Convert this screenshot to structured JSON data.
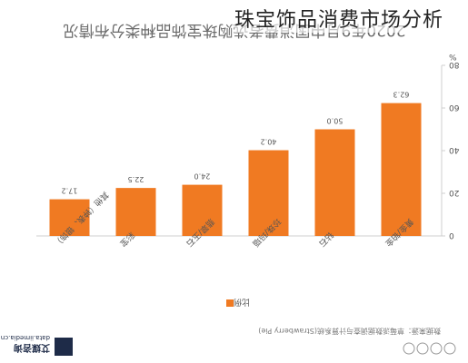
{
  "overlay_title": "珠宝饰品消费市场分析",
  "chart_data": {
    "type": "bar",
    "title": "2020年9月中国消费者选购珠宝饰品种类分布情况",
    "categories": [
      "黄金/铂金",
      "钻石",
      "珍珠/玛瑙",
      "翡翠/玉石",
      "彩宝",
      "其他（钟表、银饰）"
    ],
    "values": [
      62.3,
      50.0,
      40.2,
      24.0,
      22.5,
      17.2
    ],
    "value_labels": [
      "62.3",
      "50.0",
      "40.2",
      "24.0",
      "22.5",
      "17.2"
    ],
    "yticks": [
      "0",
      "20",
      "40",
      "60",
      "80"
    ],
    "ylim": [
      0,
      80
    ],
    "unit": "%",
    "legend": "比例",
    "legend_position": "bottom-left",
    "grid": false,
    "source": "数据来源：草莓派数据调查与计算系统(Strawberry Pie)",
    "colors": {
      "bar": "#f07a22",
      "axis": "#cfcfcf",
      "text": "#555555"
    }
  },
  "brand": {
    "logo_text": "艾媒咨询",
    "site": "data.iimedia.cn"
  }
}
